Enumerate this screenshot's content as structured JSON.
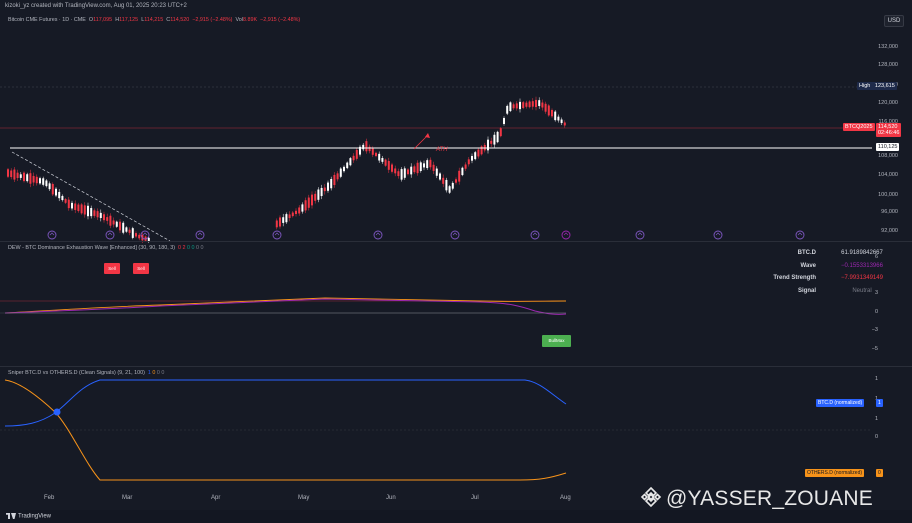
{
  "header": {
    "attribution": "kizoki_yz created with TradingView.com, Aug 01, 2025 20:23 UTC+2",
    "currency": "USD"
  },
  "main_pane": {
    "symbol_title": "Bitcoin CME Futures · 1D · CME",
    "ohlc": {
      "o_label": "O",
      "o": "117,095",
      "h_label": "H",
      "h": "117,125",
      "l_label": "L",
      "l": "114,215",
      "c_label": "C",
      "c": "114,520",
      "chg": "−2,915 (−2.48%)",
      "vol_label": "Vol",
      "vol": "8.89K",
      "vol_chg": "−2,915 (−2.48%)"
    },
    "price_ticks": [
      "132,000",
      "128,000",
      "124,000",
      "120,000",
      "116,000",
      "108,000",
      "104,000",
      "100,000",
      "96,000",
      "92,000"
    ],
    "high_tag": {
      "label": "High",
      "value": "123,615"
    },
    "current_tag": {
      "symbol": "BTCQ2025",
      "value": "114,520",
      "countdown": "02:46:46"
    },
    "level_tag": {
      "value": "110,125"
    },
    "ath_label": "ATH"
  },
  "dew_pane": {
    "title": "DEW - BTC Dominance Exhaustion Wave [Enhanced] (30, 90, 180, 3)",
    "values": [
      "0",
      "2",
      "0",
      "0",
      "0",
      "0"
    ],
    "ticks": [
      "6",
      "3",
      "0",
      "−3",
      "−5"
    ],
    "badges": {
      "sell1": "Sell",
      "sell2": "Sell",
      "buy": "BullMax"
    },
    "table": {
      "rows": [
        {
          "key": "BTC.D",
          "value": "61.9189842667",
          "color": "#d1d4dc"
        },
        {
          "key": "Wave",
          "value": "−0.1553313966",
          "color": "#9c27b0"
        },
        {
          "key": "Trend Strength",
          "value": "−7.9931349149",
          "color": "#f23645"
        },
        {
          "key": "Signal",
          "value": "Neutral",
          "color": "#787b86"
        }
      ]
    }
  },
  "sniper_pane": {
    "title": "Sniper BTC.D vs OTHERS.D (Clean Signals) (9, 21, 100)",
    "values": [
      "1",
      "0",
      "0",
      "0"
    ],
    "ticks": [
      "1",
      "1",
      "1",
      "0"
    ],
    "btc_tag": {
      "label": "BTC.D (normalized)",
      "value": "1"
    },
    "others_tag": {
      "label": "OTHERS.D (normalized)",
      "value": "0"
    }
  },
  "x_axis": {
    "labels": [
      "Feb",
      "Mar",
      "Apr",
      "May",
      "Jun",
      "Jul",
      "Aug"
    ]
  },
  "footer": {
    "brand": "TradingView"
  },
  "watermark": {
    "text": "@YASSER_ZOUANE"
  },
  "colors": {
    "bg": "#161a25",
    "up": "#ffffff",
    "down": "#f23645",
    "btc_line": "#2962ff",
    "others_line": "#f7931a",
    "wave_line": "#9c27b0",
    "accent": "#2962ff"
  }
}
